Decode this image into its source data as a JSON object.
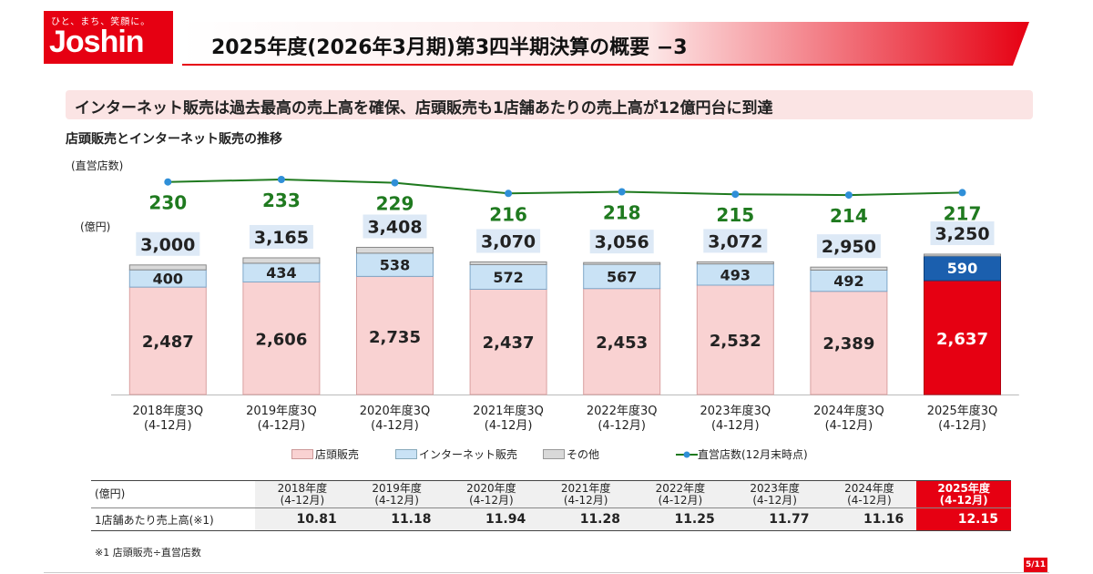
{
  "logo": {
    "tagline": "ひと、まち、笑顔に。",
    "brand": "Joshin"
  },
  "title": "2025年度(2026年3月期)第3四半期決算の概要 −3",
  "headline": "インターネット販売は過去最高の売上高を確保、店頭販売も1店舗あたりの売上高が12億円台に到達",
  "subtitle": "店頭販売とインターネット販売の推移",
  "colors": {
    "brand_red": "#e60012",
    "store": "#f9d2d2",
    "internet": "#c9e2f5",
    "other": "#d9d9d9",
    "line": "#1f7a1f",
    "marker": "#2f8fd8",
    "total_bg": "#dde9f6"
  },
  "chart_data": {
    "type": "bar",
    "stacked": true,
    "y_unit_label": "(億円)",
    "secondary_unit_label": "(直営店数)",
    "categories": [
      [
        "2018年度3Q",
        "(4-12月)"
      ],
      [
        "2019年度3Q",
        "(4-12月)"
      ],
      [
        "2020年度3Q",
        "(4-12月)"
      ],
      [
        "2021年度3Q",
        "(4-12月)"
      ],
      [
        "2022年度3Q",
        "(4-12月)"
      ],
      [
        "2023年度3Q",
        "(4-12月)"
      ],
      [
        "2024年度3Q",
        "(4-12月)"
      ],
      [
        "2025年度3Q",
        "(4-12月)"
      ]
    ],
    "series": [
      {
        "name": "店頭販売",
        "values": [
          "2,487",
          "2,606",
          "2,735",
          "2,437",
          "2,453",
          "2,532",
          "2,389",
          "2,637"
        ]
      },
      {
        "name": "インターネット販売",
        "values": [
          "400",
          "434",
          "538",
          "572",
          "567",
          "493",
          "492",
          "590"
        ]
      },
      {
        "name": "その他",
        "values": [
          113,
          125,
          135,
          61,
          36,
          47,
          69,
          23
        ]
      }
    ],
    "totals": [
      "3,000",
      "3,165",
      "3,408",
      "3,070",
      "3,056",
      "3,072",
      "2,950",
      "3,250"
    ],
    "line": {
      "name": "直営店数(12月末時点)",
      "values": [
        "230",
        "233",
        "229",
        "216",
        "218",
        "215",
        "214",
        "217"
      ]
    },
    "highlight_index": 7
  },
  "legend": {
    "store": "店頭販売",
    "internet": "インターネット販売",
    "other": "その他",
    "stores": "直営店数(12月末時点)"
  },
  "table": {
    "unit": "(億円)",
    "headers": [
      [
        "2018年度",
        "(4-12月)"
      ],
      [
        "2019年度",
        "(4-12月)"
      ],
      [
        "2020年度",
        "(4-12月)"
      ],
      [
        "2021年度",
        "(4-12月)"
      ],
      [
        "2022年度",
        "(4-12月)"
      ],
      [
        "2023年度",
        "(4-12月)"
      ],
      [
        "2024年度",
        "(4-12月)"
      ],
      [
        "2025年度",
        "(4-12月)"
      ]
    ],
    "row_label": "1店舗あたり売上高(※1)",
    "values": [
      "10.81",
      "11.18",
      "11.94",
      "11.28",
      "11.25",
      "11.77",
      "11.16",
      "12.15"
    ]
  },
  "footnote": "※1 店頭販売÷直営店数",
  "page": "5/11"
}
